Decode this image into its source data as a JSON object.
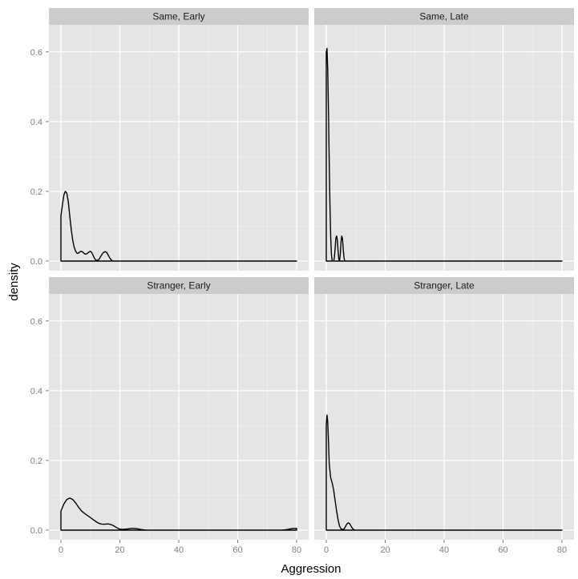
{
  "chart_data": {
    "type": "line",
    "subtype": "density facet grid",
    "xlabel": "Aggression",
    "ylabel": "density",
    "xlim": [
      0,
      80
    ],
    "ylim": [
      0,
      0.65
    ],
    "x_ticks": [
      0,
      20,
      40,
      60,
      80
    ],
    "x_tick_labels": [
      "0",
      "20",
      "40",
      "60",
      "80"
    ],
    "y_ticks": [
      0.0,
      0.2,
      0.4,
      0.6
    ],
    "y_tick_labels": [
      "0.0",
      "0.2",
      "0.4",
      "0.6"
    ],
    "grid": true,
    "colors": {
      "panel_bg": "#e5e5e5",
      "strip_bg": "#cccccc",
      "grid": "#ffffff",
      "line": "#000000"
    },
    "panels": [
      {
        "label": "Same, Early",
        "x": [
          0,
          0.5,
          1,
          1.5,
          2,
          2.5,
          3,
          3.5,
          4,
          4.5,
          5,
          5.5,
          6,
          6.5,
          7,
          7.5,
          8,
          8.5,
          9,
          9.5,
          10,
          10.5,
          11,
          11.5,
          12,
          12.5,
          13,
          13.5,
          14,
          14.5,
          15,
          15.5,
          16,
          16.5,
          17,
          17.5,
          18,
          18.5,
          19,
          20,
          30,
          40,
          50,
          60,
          70,
          80
        ],
        "y": [
          0.13,
          0.16,
          0.19,
          0.2,
          0.195,
          0.17,
          0.13,
          0.09,
          0.06,
          0.04,
          0.028,
          0.022,
          0.023,
          0.027,
          0.028,
          0.025,
          0.021,
          0.02,
          0.022,
          0.026,
          0.028,
          0.024,
          0.015,
          0.006,
          0.002,
          0.002,
          0.006,
          0.013,
          0.02,
          0.025,
          0.027,
          0.025,
          0.018,
          0.01,
          0.004,
          0.001,
          0.0,
          0.0,
          0.0,
          0.0,
          0.0,
          0.0,
          0.0,
          0.0,
          0.0,
          0.0
        ]
      },
      {
        "label": "Same, Late",
        "x": [
          0,
          0.25,
          0.5,
          0.75,
          1,
          1.25,
          1.5,
          1.75,
          2,
          2.25,
          2.5,
          2.75,
          3,
          3.25,
          3.5,
          3.75,
          4,
          4.25,
          4.5,
          4.75,
          5,
          5.25,
          5.5,
          5.75,
          6,
          6.25,
          6.5,
          6.75,
          7,
          8,
          20,
          40,
          60,
          80
        ],
        "y": [
          0.6,
          0.61,
          0.55,
          0.42,
          0.28,
          0.16,
          0.07,
          0.02,
          0.0,
          0.0,
          0.0,
          0.01,
          0.035,
          0.065,
          0.072,
          0.06,
          0.03,
          0.005,
          0.0,
          0.02,
          0.055,
          0.072,
          0.065,
          0.035,
          0.01,
          0.0,
          0.0,
          0.0,
          0.0,
          0.0,
          0.0,
          0.0,
          0.0,
          0.0
        ]
      },
      {
        "label": "Stranger, Early",
        "x": [
          0,
          1,
          2,
          3,
          4,
          5,
          6,
          7,
          8,
          9,
          10,
          11,
          12,
          13,
          14,
          15,
          16,
          17,
          18,
          19,
          20,
          21,
          22,
          23,
          24,
          25,
          26,
          27,
          28,
          29,
          30,
          40,
          50,
          60,
          70,
          75,
          76,
          77,
          78,
          79,
          80
        ],
        "y": [
          0.055,
          0.075,
          0.088,
          0.092,
          0.088,
          0.078,
          0.066,
          0.055,
          0.048,
          0.042,
          0.036,
          0.03,
          0.024,
          0.019,
          0.017,
          0.017,
          0.018,
          0.016,
          0.012,
          0.007,
          0.003,
          0.002,
          0.003,
          0.004,
          0.005,
          0.005,
          0.004,
          0.002,
          0.001,
          0.0,
          0.0,
          0.0,
          0.0,
          0.0,
          0.0,
          0.0,
          0.001,
          0.002,
          0.004,
          0.005,
          0.005
        ]
      },
      {
        "label": "Stranger, Late",
        "x": [
          0,
          0.25,
          0.5,
          0.75,
          1,
          1.5,
          2,
          2.5,
          3,
          3.5,
          4,
          4.5,
          5,
          5.5,
          6,
          6.5,
          7,
          7.5,
          8,
          8.5,
          9,
          9.5,
          10,
          11,
          20,
          40,
          60,
          80
        ],
        "y": [
          0.3,
          0.33,
          0.31,
          0.25,
          0.19,
          0.15,
          0.135,
          0.115,
          0.085,
          0.055,
          0.03,
          0.012,
          0.004,
          0.002,
          0.003,
          0.01,
          0.018,
          0.021,
          0.018,
          0.01,
          0.004,
          0.001,
          0.0,
          0.0,
          0.0,
          0.0,
          0.0,
          0.0
        ]
      }
    ]
  }
}
